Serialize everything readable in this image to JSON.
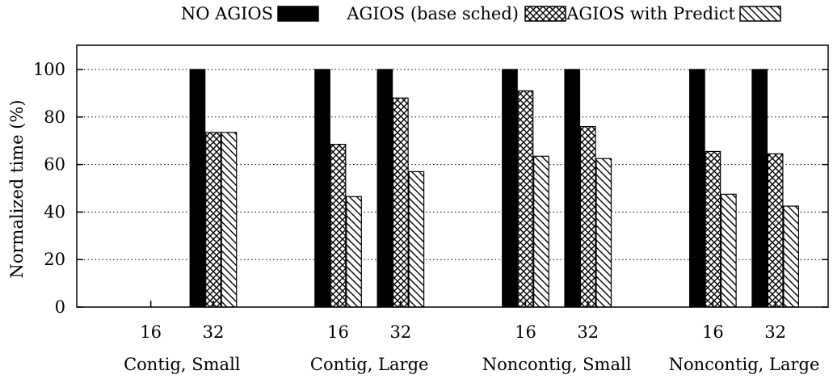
{
  "chart_data": {
    "type": "bar",
    "ylabel": "Normalized time (%)",
    "ylim": [
      0,
      100
    ],
    "yticks": [
      0,
      20,
      40,
      60,
      80,
      100
    ],
    "grid": "horizontal-dotted",
    "legend_position": "top",
    "groups": [
      {
        "label": "Contig, Small",
        "subcategories": [
          "16",
          "32"
        ]
      },
      {
        "label": "Contig, Large",
        "subcategories": [
          "16",
          "32"
        ]
      },
      {
        "label": "Noncontig, Small",
        "subcategories": [
          "16",
          "32"
        ]
      },
      {
        "label": "Noncontig, Large",
        "subcategories": [
          "16",
          "32"
        ]
      }
    ],
    "series": [
      {
        "name": "NO AGIOS",
        "pattern": "solid",
        "values": [
          null,
          100,
          100,
          100,
          100,
          100,
          100,
          100
        ]
      },
      {
        "name": "AGIOS (base sched)",
        "pattern": "crosshatch",
        "values": [
          null,
          73.5,
          68.5,
          88,
          91,
          76,
          65.5,
          64.5
        ]
      },
      {
        "name": "AGIOS with Predict",
        "pattern": "diagonal",
        "values": [
          null,
          73.5,
          46.5,
          57,
          63.5,
          62.5,
          47.5,
          42.5
        ]
      }
    ]
  }
}
